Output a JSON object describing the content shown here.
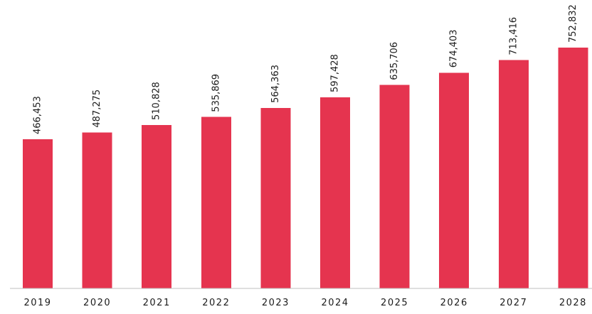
{
  "chart_data": {
    "type": "bar",
    "title": "",
    "xlabel": "",
    "ylabel": "",
    "categories": [
      "2019",
      "2020",
      "2021",
      "2022",
      "2023",
      "2024",
      "2025",
      "2026",
      "2027",
      "2028"
    ],
    "values": [
      466453,
      487275,
      510828,
      535869,
      564363,
      597428,
      635706,
      674403,
      713416,
      752832
    ],
    "value_labels": [
      "466,453",
      "487,275",
      "510,828",
      "535,869",
      "564,363",
      "597,428",
      "635,706",
      "674,403",
      "713,416",
      "752,832"
    ],
    "ylim": [
      0,
      800000
    ],
    "grid": false,
    "legend": "none",
    "bar_color": "#e5344f",
    "axis_color": "#bfbfbf"
  }
}
